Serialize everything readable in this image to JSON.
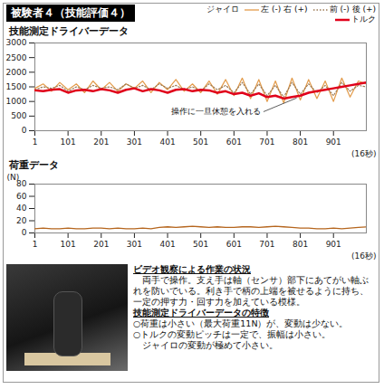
{
  "header": {
    "title": "被験者４（技能評価４）"
  },
  "chart_data": [
    {
      "type": "line",
      "title": "技能測定ドライバーデータ",
      "x_label": "(16秒)",
      "x": [
        1,
        26,
        51,
        76,
        101,
        126,
        151,
        176,
        201,
        226,
        251,
        276,
        301,
        326,
        351,
        376,
        401,
        426,
        451,
        476,
        501,
        526,
        551,
        576,
        601,
        626,
        651,
        676,
        701,
        726,
        751,
        776,
        801,
        826,
        851,
        876,
        901,
        926,
        951,
        976,
        1000
      ],
      "xlim": [
        1,
        1000
      ],
      "xticks": [
        1,
        101,
        201,
        301,
        401,
        501,
        601,
        701,
        801,
        901
      ],
      "ylim": [
        0,
        3000
      ],
      "yticks": [
        0,
        500,
        1000,
        1500,
        2000,
        2500,
        3000
      ],
      "grid": false,
      "legend": "top-right",
      "series": [
        {
          "name": "左 (-) 右 (+)",
          "group": "ジャイロ",
          "color": "#e39b4a",
          "line_style": "solid",
          "values": [
            1450,
            1600,
            1350,
            1650,
            1400,
            1600,
            1300,
            1700,
            1400,
            1650,
            1350,
            1600,
            1450,
            1700,
            1300,
            1650,
            1400,
            1750,
            1350,
            1600,
            1300,
            1700,
            1250,
            1750,
            1200,
            1800,
            1100,
            1750,
            1000,
            1700,
            950,
            1800,
            1050,
            1750,
            1100,
            1700,
            1000,
            1800,
            1150,
            1700,
            1600
          ]
        },
        {
          "name": "前 (-) 後 (+)",
          "group": "ジャイロ",
          "color": "#9c7a55",
          "line_style": "dotted",
          "values": [
            1400,
            1500,
            1450,
            1550,
            1350,
            1500,
            1400,
            1550,
            1450,
            1500,
            1400,
            1600,
            1450,
            1550,
            1400,
            1600,
            1450,
            1550,
            1400,
            1500,
            1350,
            1600,
            1400,
            1550,
            1300,
            1650,
            1250,
            1600,
            1200,
            1550,
            1150,
            1650,
            1250,
            1600,
            1300,
            1550,
            1200,
            1650,
            1350,
            1550,
            1500
          ]
        },
        {
          "name": "トルク",
          "color": "#e0001a",
          "line_style": "solid",
          "values": [
            1380,
            1350,
            1400,
            1420,
            1300,
            1380,
            1400,
            1350,
            1420,
            1380,
            1300,
            1400,
            1450,
            1350,
            1420,
            1380,
            1300,
            1400,
            1420,
            1350,
            1400,
            1380,
            1300,
            1350,
            1250,
            1300,
            1200,
            1280,
            1150,
            1200,
            1100,
            1150,
            1200,
            1300,
            1350,
            1400,
            1450,
            1500,
            1550,
            1600,
            1650
          ]
        }
      ],
      "annotations": [
        {
          "text": "操作に一旦休憩を入れる",
          "x": 690,
          "y": 650,
          "point_x": 790,
          "point_y": 1120
        }
      ]
    },
    {
      "type": "line",
      "title": "荷重データ",
      "y_label": "(N)",
      "x_label": "(16秒)",
      "x": [
        1,
        26,
        51,
        76,
        101,
        126,
        151,
        176,
        201,
        226,
        251,
        276,
        301,
        326,
        351,
        376,
        401,
        426,
        451,
        476,
        501,
        526,
        551,
        576,
        601,
        626,
        651,
        676,
        701,
        726,
        751,
        776,
        801,
        826,
        851,
        876,
        901,
        926,
        951,
        976,
        1000
      ],
      "xlim": [
        1,
        1000
      ],
      "xticks": [
        1,
        101,
        201,
        301,
        401,
        501,
        601,
        701,
        801,
        901
      ],
      "ylim": [
        0,
        80
      ],
      "yticks": [
        0,
        20,
        40,
        60,
        80
      ],
      "grid": false,
      "color": "#b5651d",
      "values": [
        7,
        8,
        7,
        7,
        8,
        7,
        7,
        8,
        8,
        7,
        8,
        7,
        7,
        8,
        7,
        9,
        10,
        9,
        10,
        11,
        10,
        9,
        10,
        9,
        9,
        10,
        10,
        9,
        10,
        11,
        10,
        9,
        8,
        8,
        7,
        7,
        8,
        7,
        8,
        9,
        10
      ]
    }
  ],
  "notes": {
    "observation": {
      "heading": "ビデオ観察による作業の状況",
      "text": "両手で操作。支え手は軸（センサ）部下にあてがい軸ぶれを防いでいる。利き手で柄の上端を被せるように持ち、一定の押す力・回す力を加えている模様。"
    },
    "features": {
      "heading": "技能測定ドライバーデータの特徴",
      "lines": [
        "○荷重は小さい（最大荷重11N）が、変動は少ない。",
        "○トルクの変動ピッチは一定で、振幅は小さい。",
        "ジャイロの変動が極めて小さい。"
      ]
    }
  }
}
